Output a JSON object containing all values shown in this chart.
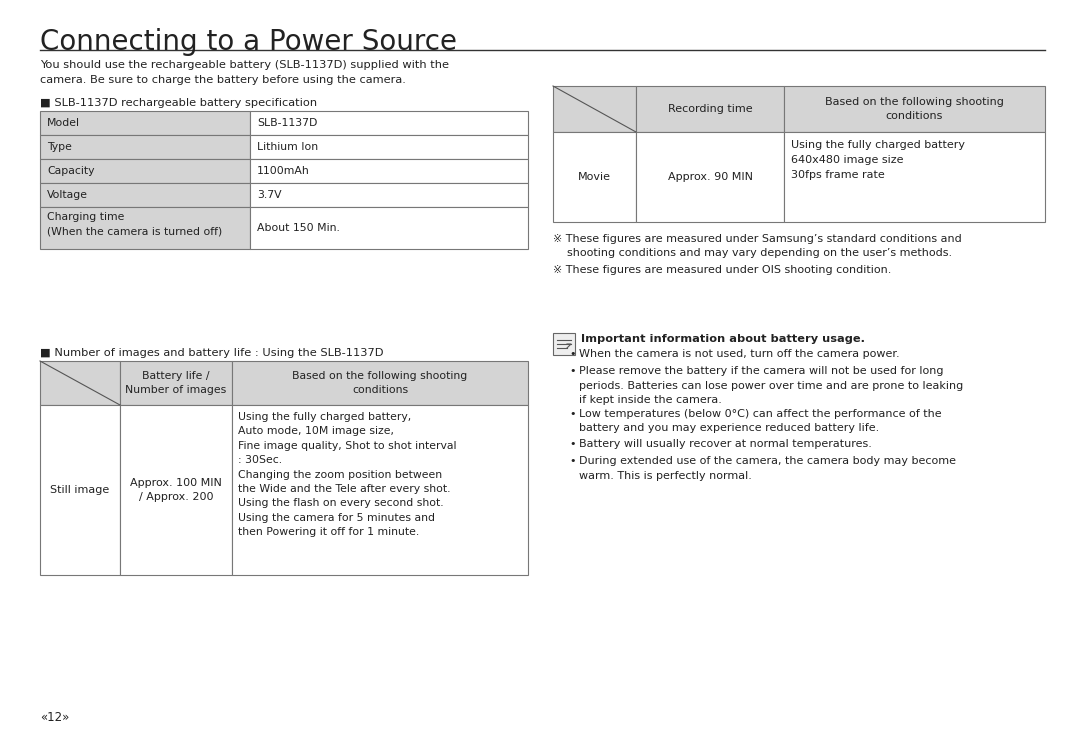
{
  "title": "Connecting to a Power Source",
  "bg_color": "#ffffff",
  "text_color": "#222222",
  "intro_text": "You should use the rechargeable battery (SLB-1137D) supplied with the\ncamera. Be sure to charge the battery before using the camera.",
  "section1_label": "■ SLB-1137D rechargeable battery specification",
  "battery_spec": [
    [
      "Model",
      "SLB-1137D"
    ],
    [
      "Type",
      "Lithium Ion"
    ],
    [
      "Capacity",
      "1100mAh"
    ],
    [
      "Voltage",
      "3.7V"
    ],
    [
      "Charging time\n(When the camera is turned off)",
      "About 150 Min."
    ]
  ],
  "section2_label": "■ Number of images and battery life : Using the SLB-1137D",
  "table2_header": [
    "",
    "Battery life /\nNumber of images",
    "Based on the following shooting\nconditions"
  ],
  "table2_row": [
    "Still image",
    "Approx. 100 MIN\n/ Approx. 200",
    "Using the fully charged battery,\nAuto mode, 10M image size,\nFine image quality, Shot to shot interval\n: 30Sec.\nChanging the zoom position between\nthe Wide and the Tele after every shot.\nUsing the flash on every second shot.\nUsing the camera for 5 minutes and\nthen Powering it off for 1 minute."
  ],
  "table3_header": [
    "",
    "Recording time",
    "Based on the following shooting\nconditions"
  ],
  "table3_row": [
    "Movie",
    "Approx. 90 MIN",
    "Using the fully charged battery\n640x480 image size\n30fps frame rate"
  ],
  "notes": [
    "※ These figures are measured under Samsung’s standard conditions and\n    shooting conditions and may vary depending on the user’s methods.",
    "※ These figures are measured under OIS shooting condition."
  ],
  "important_title": "Important information about battery usage.",
  "important_bullets": [
    "When the camera is not used, turn off the camera power.",
    "Please remove the battery if the camera will not be used for long\nperiods. Batteries can lose power over time and are prone to leaking\nif kept inside the camera.",
    "Low temperatures (below 0°C) can affect the performance of the\nbattery and you may experience reduced battery life.",
    "Battery will usually recover at normal temperatures.",
    "During extended use of the camera, the camera body may become\nwarm. This is perfectly normal."
  ],
  "page_number": "«12»",
  "table_header_bg": "#d4d4d4",
  "table_border": "#777777",
  "table_cell_bg": "#ffffff"
}
